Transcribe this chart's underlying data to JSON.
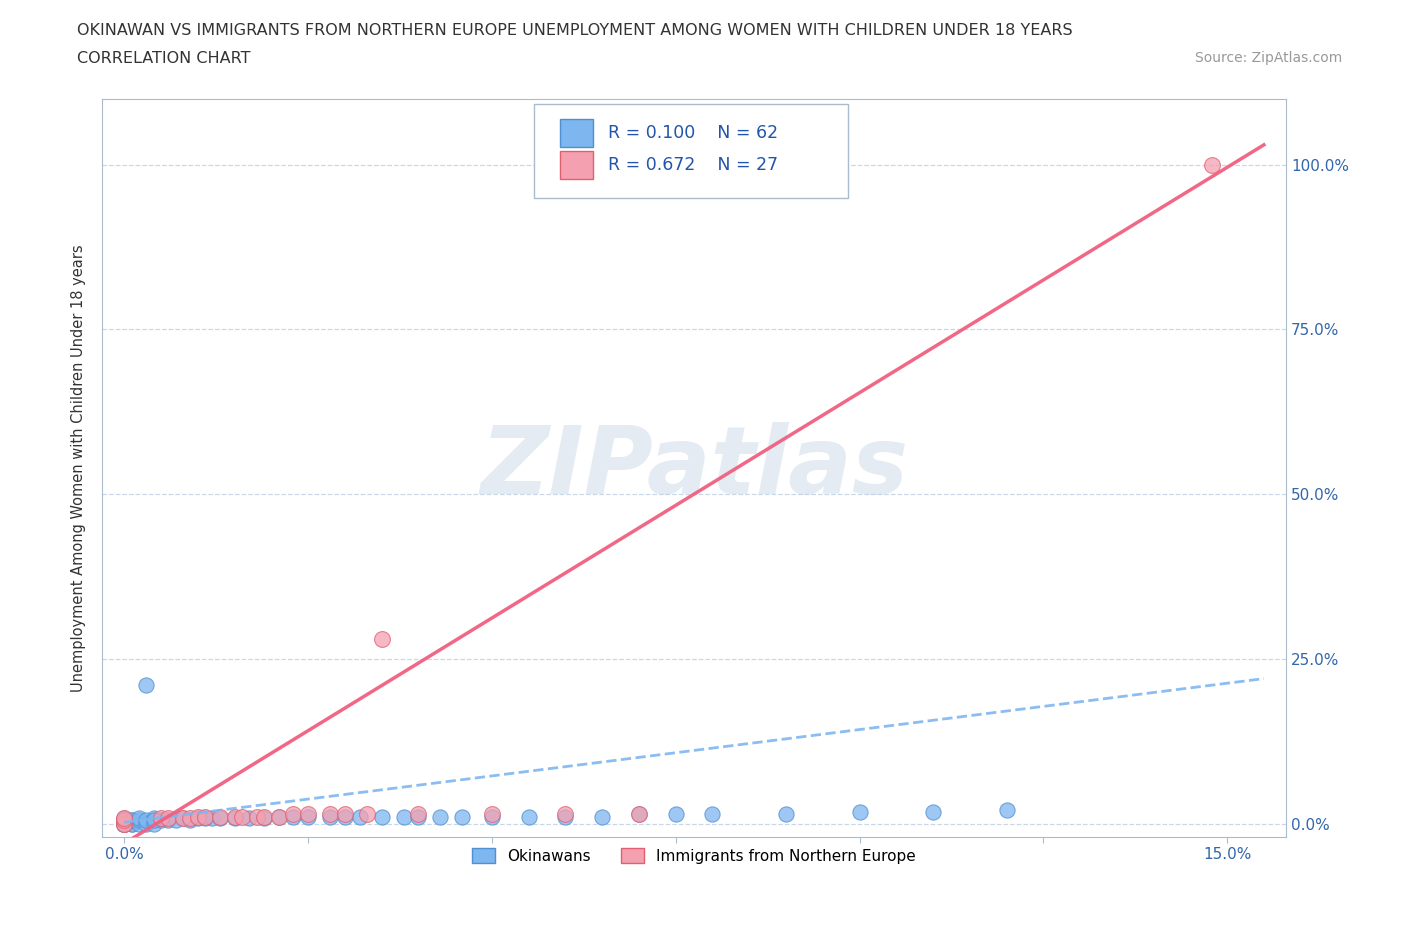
{
  "title_line1": "OKINAWAN VS IMMIGRANTS FROM NORTHERN EUROPE UNEMPLOYMENT AMONG WOMEN WITH CHILDREN UNDER 18 YEARS",
  "title_line2": "CORRELATION CHART",
  "source": "Source: ZipAtlas.com",
  "watermark": "ZIPatlas",
  "xlim": [
    -0.003,
    0.158
  ],
  "ylim": [
    -0.02,
    1.1
  ],
  "okinawan_color": "#7EB6F0",
  "immigrant_color": "#F4A0B0",
  "okinawan_edge": "#5090D0",
  "immigrant_edge": "#E06070",
  "trend_okinawan_color": "#7EB6F0",
  "trend_immigrant_color": "#F06080",
  "legend_R_okinawan": "R = 0.100",
  "legend_N_okinawan": "N = 62",
  "legend_R_immigrant": "R = 0.672",
  "legend_N_immigrant": "N = 27",
  "grid_color": "#C8D8E8",
  "background_color": "#FFFFFF",
  "ylabel": "Unemployment Among Women with Children Under 18 years",
  "ok_x": [
    0.0,
    0.0,
    0.0,
    0.0,
    0.0,
    0.0,
    0.0,
    0.0,
    0.0,
    0.0,
    0.0,
    0.0,
    0.0,
    0.0,
    0.0,
    0.001,
    0.001,
    0.001,
    0.001,
    0.002,
    0.002,
    0.002,
    0.003,
    0.003,
    0.004,
    0.004,
    0.005,
    0.006,
    0.007,
    0.008,
    0.009,
    0.01,
    0.011,
    0.012,
    0.013,
    0.015,
    0.017,
    0.019,
    0.021,
    0.023,
    0.025,
    0.028,
    0.03,
    0.032,
    0.035,
    0.038,
    0.04,
    0.043,
    0.046,
    0.05,
    0.055,
    0.06,
    0.065,
    0.07,
    0.075,
    0.08,
    0.09,
    0.1,
    0.11,
    0.12,
    0.003,
    0.004
  ],
  "ok_y": [
    0.0,
    0.0,
    0.0,
    0.0,
    0.0,
    0.0,
    0.0,
    0.0,
    0.0,
    0.0,
    0.0,
    0.005,
    0.005,
    0.005,
    0.008,
    0.0,
    0.0,
    0.005,
    0.005,
    0.0,
    0.005,
    0.008,
    0.0,
    0.005,
    0.0,
    0.008,
    0.005,
    0.005,
    0.005,
    0.008,
    0.005,
    0.008,
    0.008,
    0.008,
    0.008,
    0.008,
    0.008,
    0.008,
    0.01,
    0.01,
    0.01,
    0.01,
    0.01,
    0.01,
    0.01,
    0.01,
    0.01,
    0.01,
    0.01,
    0.01,
    0.01,
    0.01,
    0.01,
    0.015,
    0.015,
    0.015,
    0.015,
    0.018,
    0.018,
    0.02,
    0.21,
    0.005
  ],
  "im_x": [
    0.0,
    0.0,
    0.0,
    0.0,
    0.005,
    0.006,
    0.008,
    0.009,
    0.01,
    0.011,
    0.013,
    0.015,
    0.016,
    0.018,
    0.019,
    0.021,
    0.023,
    0.025,
    0.028,
    0.03,
    0.033,
    0.035,
    0.04,
    0.05,
    0.06,
    0.07,
    0.148
  ],
  "im_y": [
    0.0,
    0.0,
    0.005,
    0.008,
    0.008,
    0.008,
    0.008,
    0.008,
    0.01,
    0.01,
    0.01,
    0.01,
    0.01,
    0.01,
    0.01,
    0.01,
    0.015,
    0.015,
    0.015,
    0.015,
    0.015,
    0.28,
    0.015,
    0.015,
    0.015,
    0.015,
    1.0
  ],
  "ok_trend_x": [
    0.0,
    0.155
  ],
  "ok_trend_y": [
    0.002,
    0.22
  ],
  "im_trend_x": [
    0.0,
    0.155
  ],
  "im_trend_y": [
    -0.03,
    1.03
  ],
  "x_ticks": [
    0.0,
    0.025,
    0.05,
    0.075,
    0.1,
    0.125,
    0.15
  ],
  "x_labels": [
    "0.0%",
    "",
    "",
    "",
    "",
    "",
    "15.0%"
  ],
  "y_ticks": [
    0.0,
    0.25,
    0.5,
    0.75,
    1.0
  ],
  "y_labels": [
    "0.0%",
    "25.0%",
    "50.0%",
    "75.0%",
    "100.0%"
  ]
}
